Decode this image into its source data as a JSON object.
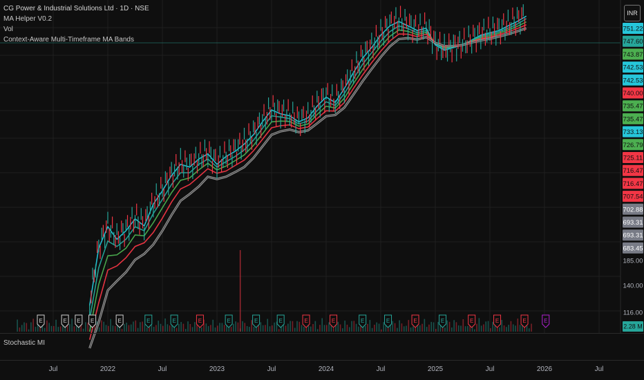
{
  "header": {
    "symbol_line": "CG Power & Industrial Solutions Ltd · 1D · NSE",
    "indicators": [
      "MA Helper V0.2",
      "Vol",
      "Context-Aware Multi-Timeframe MA Bands"
    ],
    "currency": "INR"
  },
  "lower_panel": {
    "title": "Stochastic MI"
  },
  "price_labels": [
    {
      "text": "751.22",
      "color": "#26c6da"
    },
    {
      "text": "747.60",
      "color": "#26a69a"
    },
    {
      "text": "743.87",
      "color": "#4caf50"
    },
    {
      "text": "742.53",
      "color": "#26c6da"
    },
    {
      "text": "742.53",
      "color": "#26c6da"
    },
    {
      "text": "740.00",
      "color": "#f23645"
    },
    {
      "text": "735.47",
      "color": "#4caf50"
    },
    {
      "text": "735.47",
      "color": "#4caf50"
    },
    {
      "text": "733.13",
      "color": "#26c6da"
    },
    {
      "text": "726.79",
      "color": "#4caf50"
    },
    {
      "text": "725.11",
      "color": "#f23645"
    },
    {
      "text": "716.47",
      "color": "#f23645"
    },
    {
      "text": "716.47",
      "color": "#f23645"
    },
    {
      "text": "707.54",
      "color": "#f23645"
    },
    {
      "text": "702.88",
      "color": "#787b86"
    },
    {
      "text": "693.31",
      "color": "#787b86"
    },
    {
      "text": "693.31",
      "color": "#787b86"
    },
    {
      "text": "683.45",
      "color": "#787b86"
    }
  ],
  "volume_label": "2.28 M",
  "chart_data": {
    "type": "line",
    "title": "CG Power & Industrial Solutions Ltd · 1D · NSE",
    "x_ticks": [
      "Jul",
      "2022",
      "Jul",
      "2023",
      "Jul",
      "2024",
      "Jul",
      "2025",
      "Jul",
      "2026",
      "Jul"
    ],
    "y_ticks": [
      "185.00",
      "140.00",
      "116.00"
    ],
    "log_scale": true,
    "grid": true,
    "y_range": [
      100,
      790
    ],
    "x": [
      "2021-11-01",
      "2021-12-01",
      "2022-01-01",
      "2022-02-01",
      "2022-03-01",
      "2022-04-01",
      "2022-05-01",
      "2022-06-01",
      "2022-07-01",
      "2022-08-01",
      "2022-09-01",
      "2022-10-01",
      "2022-11-01",
      "2022-12-01",
      "2023-01-01",
      "2023-02-01",
      "2023-03-01",
      "2023-04-01",
      "2023-05-01",
      "2023-06-01",
      "2023-07-01",
      "2023-08-01",
      "2023-09-01",
      "2023-10-01",
      "2023-11-01",
      "2023-12-01",
      "2024-01-01",
      "2024-02-01",
      "2024-03-01",
      "2024-04-01",
      "2024-05-01",
      "2024-06-01",
      "2024-07-01",
      "2024-08-01",
      "2024-09-01",
      "2024-10-01",
      "2024-11-01",
      "2024-12-01",
      "2025-01-01",
      "2025-02-01",
      "2025-03-01",
      "2025-04-01",
      "2025-05-01",
      "2025-06-01",
      "2025-07-01",
      "2025-08-01",
      "2025-09-01",
      "2025-10-01",
      "2025-11-01"
    ],
    "series": [
      {
        "values": [
          118,
          170,
          195,
          180,
          190,
          205,
          196,
          225,
          245,
          270,
          290,
          285,
          300,
          310,
          290,
          305,
          315,
          330,
          350,
          380,
          410,
          400,
          395,
          380,
          390,
          420,
          445,
          430,
          470,
          520,
          570,
          610,
          660,
          700,
          720,
          700,
          680,
          690,
          620,
          600,
          610,
          620,
          640,
          660,
          670,
          680,
          700,
          720,
          745
        ]
      },
      {
        "values": [
          108,
          150,
          178,
          172,
          180,
          195,
          190,
          212,
          232,
          255,
          275,
          275,
          290,
          300,
          285,
          295,
          305,
          318,
          338,
          365,
          395,
          392,
          388,
          375,
          382,
          408,
          432,
          422,
          455,
          500,
          548,
          590,
          635,
          675,
          700,
          688,
          670,
          680,
          625,
          605,
          612,
          620,
          638,
          655,
          664,
          674,
          690,
          708,
          733
        ]
      },
      {
        "values": [
          100,
          135,
          162,
          163,
          170,
          185,
          184,
          200,
          220,
          242,
          262,
          266,
          280,
          292,
          280,
          287,
          297,
          308,
          327,
          352,
          380,
          382,
          381,
          370,
          375,
          398,
          420,
          415,
          442,
          485,
          530,
          572,
          615,
          655,
          682,
          676,
          662,
          672,
          628,
          610,
          614,
          620,
          636,
          650,
          658,
          668,
          682,
          698,
          718
        ]
      },
      {
        "values": [
          95,
          120,
          148,
          152,
          160,
          172,
          176,
          188,
          206,
          228,
          248,
          255,
          268,
          282,
          274,
          278,
          288,
          298,
          316,
          340,
          366,
          371,
          373,
          364,
          368,
          388,
          408,
          407,
          430,
          470,
          512,
          554,
          596,
          636,
          665,
          664,
          654,
          664,
          630,
          615,
          616,
          620,
          634,
          645,
          652,
          662,
          674,
          688,
          705
        ]
      },
      {
        "values": [
          90,
          106,
          130,
          138,
          146,
          158,
          164,
          174,
          190,
          210,
          230,
          240,
          252,
          268,
          264,
          268,
          276,
          285,
          302,
          325,
          350,
          358,
          362,
          356,
          360,
          376,
          394,
          397,
          416,
          452,
          492,
          532,
          574,
          614,
          644,
          648,
          642,
          652,
          628,
          616,
          616,
          620,
          630,
          638,
          645,
          654,
          664,
          676,
          690
        ]
      }
    ],
    "series_colors": [
      "#26c6da",
      "#26a69a",
      "#4caf50",
      "#f23645",
      "#9e9e9e"
    ],
    "events": [
      {
        "x": "2021-05-20",
        "label": "E",
        "color": "#cfcfcf"
      },
      {
        "x": "2021-08-10",
        "label": "E",
        "color": "#cfcfcf"
      },
      {
        "x": "2021-09-25",
        "label": "E",
        "color": "#cfcfcf"
      },
      {
        "x": "2021-11-10",
        "label": "E",
        "color": "#cfcfcf"
      },
      {
        "x": "2022-02-10",
        "label": "E",
        "color": "#cfcfcf"
      },
      {
        "x": "2022-05-15",
        "label": "E",
        "color": "#26a69a"
      },
      {
        "x": "2022-08-10",
        "label": "E",
        "color": "#26a69a"
      },
      {
        "x": "2022-11-05",
        "label": "E",
        "color": "#f23645"
      },
      {
        "x": "2023-02-10",
        "label": "E",
        "color": "#26a69a"
      },
      {
        "x": "2023-05-10",
        "label": "E",
        "color": "#26a69a"
      },
      {
        "x": "2023-08-01",
        "label": "E",
        "color": "#26a69a"
      },
      {
        "x": "2023-10-25",
        "label": "E",
        "color": "#f23645"
      },
      {
        "x": "2024-01-25",
        "label": "E",
        "color": "#f23645"
      },
      {
        "x": "2024-05-01",
        "label": "E",
        "color": "#26a69a"
      },
      {
        "x": "2024-07-25",
        "label": "E",
        "color": "#26a69a"
      },
      {
        "x": "2024-10-25",
        "label": "E",
        "color": "#f23645"
      },
      {
        "x": "2025-01-25",
        "label": "E",
        "color": "#26a69a"
      },
      {
        "x": "2025-05-01",
        "label": "E",
        "color": "#f23645"
      },
      {
        "x": "2025-07-25",
        "label": "E",
        "color": "#f23645"
      },
      {
        "x": "2025-10-25",
        "label": "E",
        "color": "#f23645"
      },
      {
        "x": "2026-01-05",
        "label": "E",
        "color": "#b020d0"
      }
    ]
  }
}
